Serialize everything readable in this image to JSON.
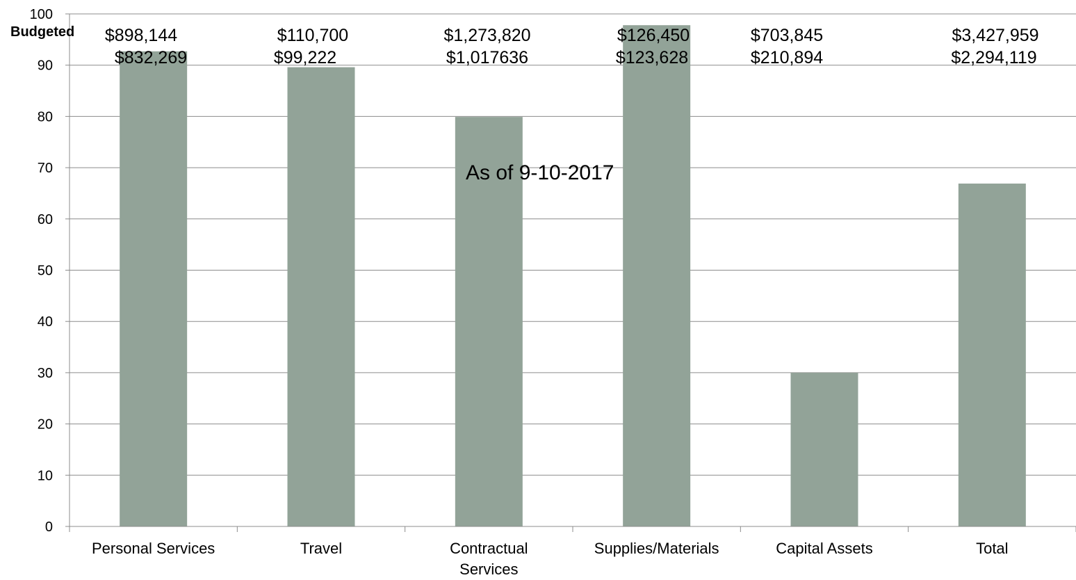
{
  "chart_data": {
    "type": "bar",
    "categories": [
      [
        "Personal Services"
      ],
      [
        "Travel"
      ],
      [
        "Contractual",
        "Services"
      ],
      [
        "Supplies/Materials"
      ],
      [
        "Capital Assets"
      ],
      [
        "Total"
      ]
    ],
    "values": [
      92.7,
      89.6,
      79.9,
      97.8,
      30.0,
      66.9
    ],
    "budgeted": [
      "$898,144",
      "$110,700",
      "$1,273,820",
      "$126,450",
      "$703,845",
      "$3,427,959"
    ],
    "spent": [
      "$832,269",
      "$99,222",
      "$1,017636",
      "$123,628",
      "$210,894",
      "$2,294,119"
    ],
    "row_label": "Budgeted",
    "annotation": "As of 9-10-2017",
    "yticks": [
      "0",
      "10",
      "20",
      "30",
      "40",
      "50",
      "60",
      "70",
      "80",
      "90",
      "100"
    ],
    "ylim": [
      0,
      100
    ],
    "grid": true,
    "colors": {
      "bar": "#92a398",
      "grid": "#8c8c8c",
      "axis": "#8c8c8c"
    }
  }
}
